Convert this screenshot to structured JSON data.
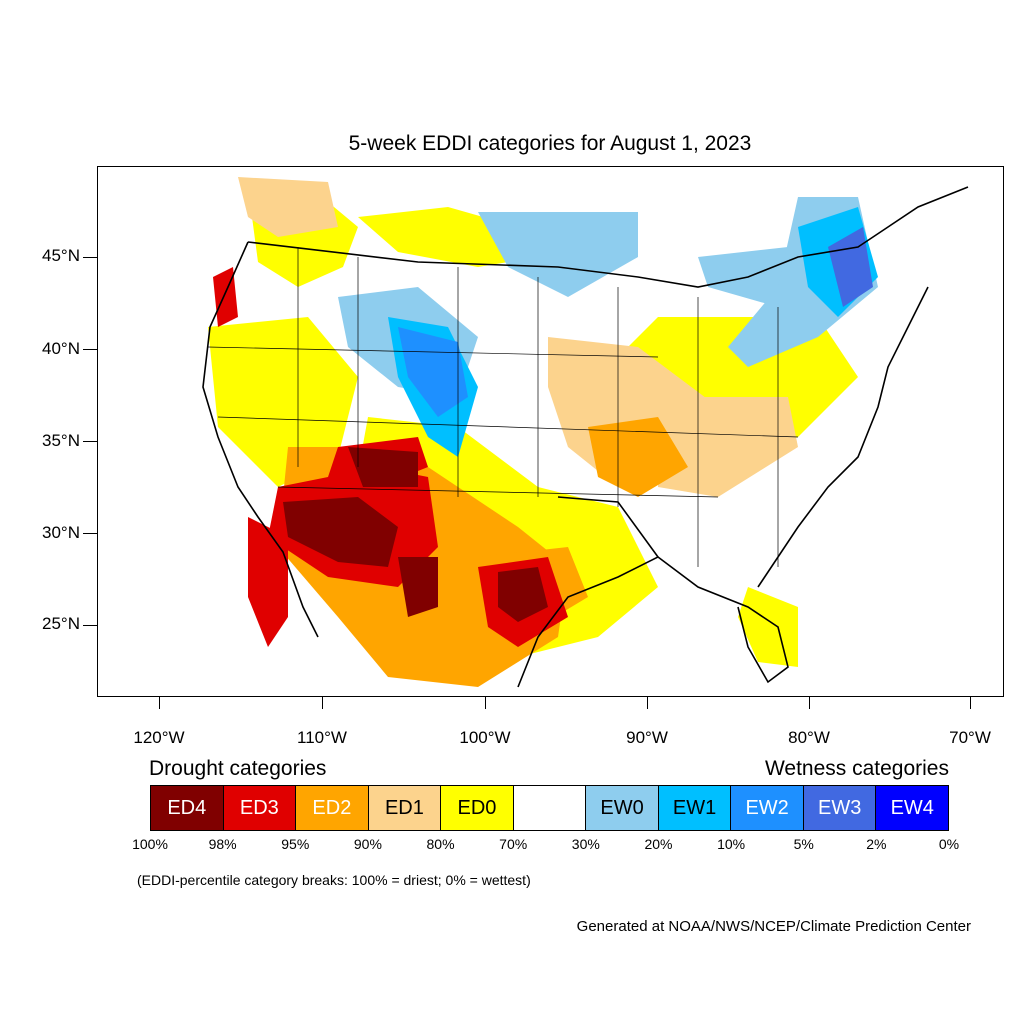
{
  "title": "5-week EDDI categories for August 1, 2023",
  "lat_axis": [
    "45°N",
    "40°N",
    "35°N",
    "30°N",
    "25°N"
  ],
  "lon_axis": [
    "120°W",
    "110°W",
    "100°W",
    "90°W",
    "80°W",
    "70°W"
  ],
  "legend": {
    "drought_heading": "Drought categories",
    "wetness_heading": "Wetness categories",
    "categories": [
      {
        "label": "ED4",
        "color": "#800000",
        "text_color": "#ffffff"
      },
      {
        "label": "ED3",
        "color": "#e00000",
        "text_color": "#ffffff"
      },
      {
        "label": "ED2",
        "color": "#ffa500",
        "text_color": "#ffffff"
      },
      {
        "label": "ED1",
        "color": "#fcd38d",
        "text_color": "#000000"
      },
      {
        "label": "ED0",
        "color": "#ffff00",
        "text_color": "#000000"
      },
      {
        "label": "",
        "color": "#ffffff",
        "text_color": "#000000"
      },
      {
        "label": "EW0",
        "color": "#8ecdee",
        "text_color": "#000000"
      },
      {
        "label": "EW1",
        "color": "#00bfff",
        "text_color": "#000000"
      },
      {
        "label": "EW2",
        "color": "#1e90ff",
        "text_color": "#ffffff"
      },
      {
        "label": "EW3",
        "color": "#4169e1",
        "text_color": "#ffffff"
      },
      {
        "label": "EW4",
        "color": "#0000ff",
        "text_color": "#ffffff"
      }
    ],
    "breaks": [
      "100%",
      "98%",
      "95%",
      "90%",
      "80%",
      "70%",
      "30%",
      "20%",
      "10%",
      "5%",
      "2%",
      "0%"
    ]
  },
  "note": "(EDDI-percentile category breaks: 100% = driest; 0% = wettest)",
  "credit": "Generated at NOAA/NWS/NCEP/Climate Prediction Center"
}
